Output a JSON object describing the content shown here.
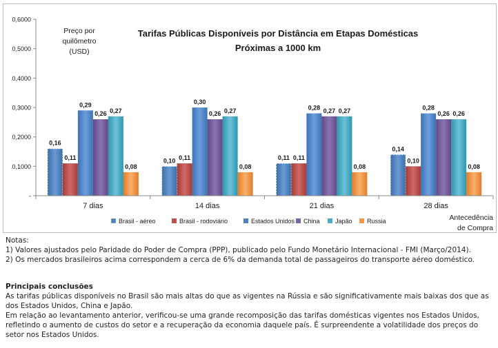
{
  "chart_data": {
    "type": "bar",
    "title_line1": "Tarifas  Públicas  Disponíveis   por  Distância  em  Etapas  Domésticas",
    "title_line2": "Próximas  a  1000 km",
    "ylabel_lines": [
      "Preço por",
      "quilômetro",
      "(USD)"
    ],
    "xlabel_lines": [
      "Antecedência",
      "de Compra"
    ],
    "categories": [
      "7 dias",
      "14 dias",
      "21 dias",
      "28 dias"
    ],
    "ylim": [
      0,
      0.6
    ],
    "yticks": [
      "-",
      "0,1000",
      "0,2000",
      "0,3000",
      "0,4000",
      "0,5000",
      "0,6000"
    ],
    "grid": false,
    "legend_position": "bottom",
    "series": [
      {
        "name": "Brasil  -  aéreo",
        "color": "#4f81bd",
        "dashed": true,
        "values": [
          0.16,
          0.1,
          0.11,
          0.14
        ],
        "labels": [
          "0,16",
          "0,10",
          "0,11",
          "0,14"
        ]
      },
      {
        "name": "Brasil  -  rodoviário",
        "color": "#c0504d",
        "dashed": false,
        "values": [
          0.11,
          0.11,
          0.11,
          0.1
        ],
        "labels": [
          "0,11",
          "0,11",
          "0,11",
          "0,10"
        ]
      },
      {
        "name": "Estados Unidos",
        "color": "#4f81bd",
        "dashed": false,
        "values": [
          0.29,
          0.3,
          0.28,
          0.28
        ],
        "labels": [
          "0,29",
          "0,30",
          "0,28",
          "0,28"
        ]
      },
      {
        "name": "China",
        "color": "#8064a2",
        "dashed": false,
        "values": [
          0.26,
          0.26,
          0.27,
          0.26
        ],
        "labels": [
          "0,26",
          "0,26",
          "0,27",
          "0,26"
        ]
      },
      {
        "name": "Japão",
        "color": "#4bacc6",
        "dashed": false,
        "values": [
          0.27,
          0.27,
          0.27,
          0.26
        ],
        "labels": [
          "0,27",
          "0,27",
          "0,27",
          "0,26"
        ]
      },
      {
        "name": "Russia",
        "color": "#f79646",
        "dashed": false,
        "values": [
          0.08,
          0.08,
          0.08,
          0.08
        ],
        "labels": [
          "0,08",
          "0,08",
          "0,08",
          "0,08"
        ]
      }
    ]
  },
  "notes": {
    "heading": "Notas:",
    "note1": "1) Valores ajustados pelo Paridade do Poder de Compra (PPP), publicado pelo Fundo Monetário Internacional - FMI (Março/2014).",
    "note2": "2) Os mercados brasileiros acima correspondem a cerca de 6% da demanda total de passageiros do transporte aéreo doméstico."
  },
  "conclusions": {
    "heading": "Principais conclusões",
    "para1": "As tarifas públicas disponíveis no Brasil são mais altas do que as vigentes na Rússia e são significativamente mais baixas dos que as dos Estados Unidos, China e Japão.",
    "para2": "Em relação ao levantamento anterior, verificou-se uma grande recomposição das tarifas domésticas vigentes nos Estados Unidos, refletindo o aumento de custos do setor e a recuperação da economia daquele país. É surpreendente a volatilidade dos preços do setor nos Estados Unidos."
  }
}
